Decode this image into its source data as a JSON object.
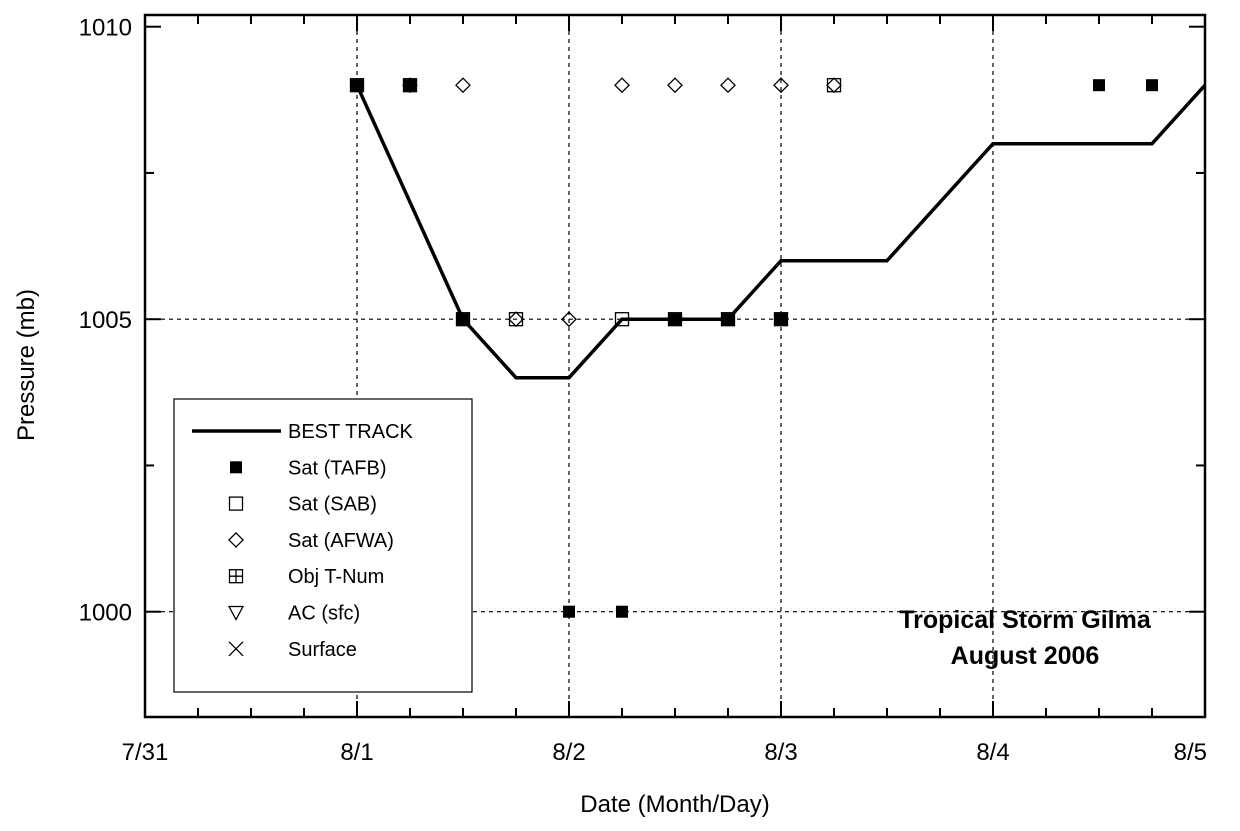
{
  "chart_data": {
    "type": "line",
    "title": "",
    "xlabel": "Date (Month/Day)",
    "ylabel": "Pressure (mb)",
    "x_tick_labels": [
      "7/31",
      "8/1",
      "8/2",
      "8/3",
      "8/4",
      "8/5"
    ],
    "y_tick_labels": [
      "1000",
      "1005",
      "1010"
    ],
    "xlim": [
      "2006-07-31 00:00",
      "2006-08-05 00:00"
    ],
    "ylim": [
      998.2,
      1010.2
    ],
    "grid": true,
    "legend_position": "lower-left",
    "annotation": [
      "Tropical Storm Gilma",
      "August 2006"
    ],
    "series": [
      {
        "name": "BEST TRACK",
        "style": "line",
        "points": [
          {
            "x": "2006-08-01 00:00",
            "y": 1009
          },
          {
            "x": "2006-08-01 12:00",
            "y": 1005
          },
          {
            "x": "2006-08-01 18:00",
            "y": 1004
          },
          {
            "x": "2006-08-02 00:00",
            "y": 1004
          },
          {
            "x": "2006-08-02 06:00",
            "y": 1005
          },
          {
            "x": "2006-08-02 12:00",
            "y": 1005
          },
          {
            "x": "2006-08-02 18:00",
            "y": 1005
          },
          {
            "x": "2006-08-03 00:00",
            "y": 1006
          },
          {
            "x": "2006-08-03 12:00",
            "y": 1006
          },
          {
            "x": "2006-08-04 00:00",
            "y": 1008
          },
          {
            "x": "2006-08-04 18:00",
            "y": 1008
          },
          {
            "x": "2006-08-05 00:00",
            "y": 1009
          }
        ]
      },
      {
        "name": "Sat (TAFB)",
        "style": "square-filled",
        "points": [
          {
            "x": "2006-08-01 00:00",
            "y": 1009
          },
          {
            "x": "2006-08-01 06:00",
            "y": 1009
          },
          {
            "x": "2006-08-01 12:00",
            "y": 1005
          },
          {
            "x": "2006-08-02 00:00",
            "y": 1000
          },
          {
            "x": "2006-08-02 06:00",
            "y": 1000
          },
          {
            "x": "2006-08-02 12:00",
            "y": 1005
          },
          {
            "x": "2006-08-02 18:00",
            "y": 1005
          },
          {
            "x": "2006-08-03 00:00",
            "y": 1005
          },
          {
            "x": "2006-08-04 12:00",
            "y": 1009
          },
          {
            "x": "2006-08-04 18:00",
            "y": 1009
          }
        ]
      },
      {
        "name": "Sat (SAB)",
        "style": "square-open",
        "points": [
          {
            "x": "2006-08-01 00:00",
            "y": 1009
          },
          {
            "x": "2006-08-01 06:00",
            "y": 1009
          },
          {
            "x": "2006-08-01 12:00",
            "y": 1005
          },
          {
            "x": "2006-08-01 18:00",
            "y": 1005
          },
          {
            "x": "2006-08-02 06:00",
            "y": 1005
          },
          {
            "x": "2006-08-02 12:00",
            "y": 1005
          },
          {
            "x": "2006-08-02 18:00",
            "y": 1005
          },
          {
            "x": "2006-08-03 00:00",
            "y": 1005
          },
          {
            "x": "2006-08-03 06:00",
            "y": 1009
          }
        ]
      },
      {
        "name": "Sat (AFWA)",
        "style": "diamond-open",
        "points": [
          {
            "x": "2006-08-01 06:00",
            "y": 1009
          },
          {
            "x": "2006-08-01 12:00",
            "y": 1009
          },
          {
            "x": "2006-08-01 18:00",
            "y": 1005
          },
          {
            "x": "2006-08-02 00:00",
            "y": 1005
          },
          {
            "x": "2006-08-02 06:00",
            "y": 1009
          },
          {
            "x": "2006-08-02 12:00",
            "y": 1009
          },
          {
            "x": "2006-08-02 18:00",
            "y": 1009
          },
          {
            "x": "2006-08-03 00:00",
            "y": 1009
          },
          {
            "x": "2006-08-03 06:00",
            "y": 1009
          }
        ]
      },
      {
        "name": "Obj T-Num",
        "style": "square-plus",
        "points": []
      },
      {
        "name": "AC (sfc)",
        "style": "triangle-down-open",
        "points": []
      },
      {
        "name": "Surface",
        "style": "x-mark",
        "points": []
      }
    ]
  }
}
